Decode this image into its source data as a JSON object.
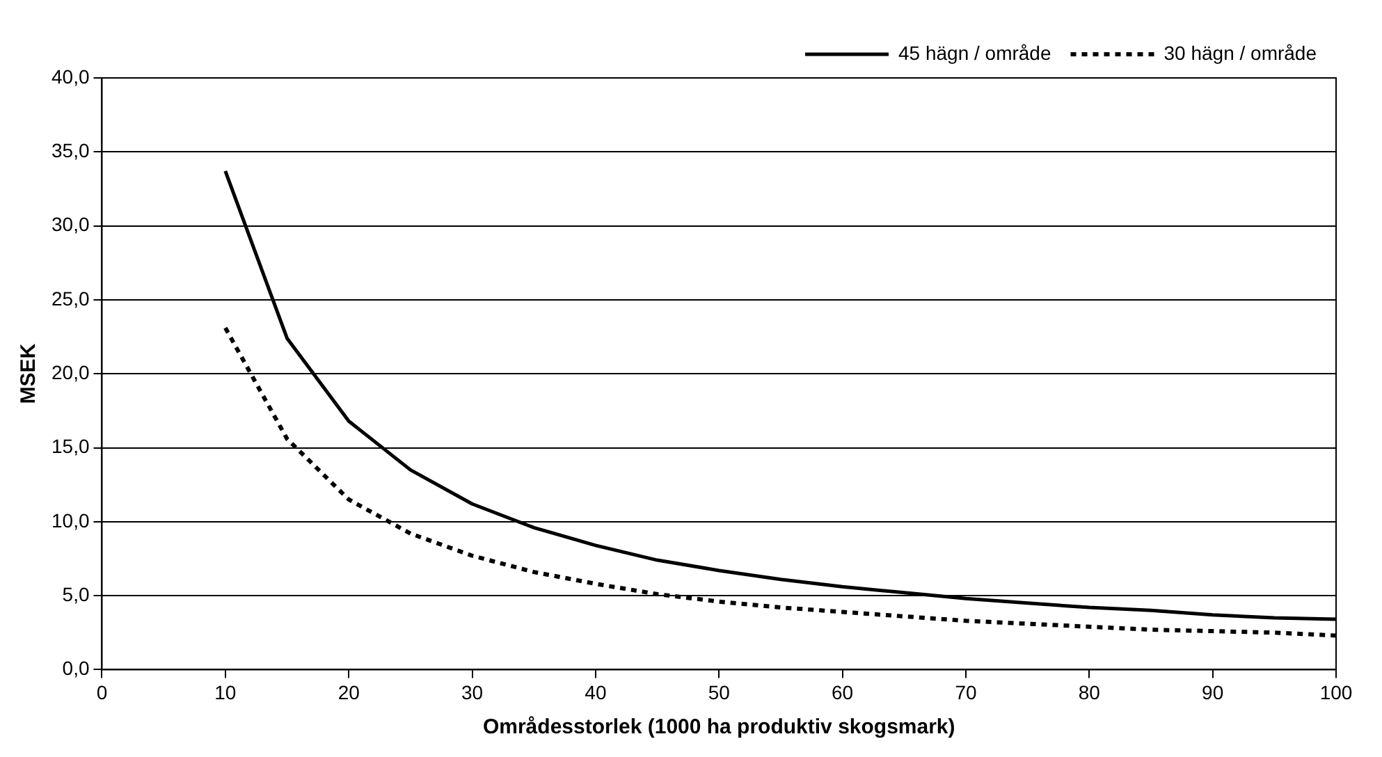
{
  "chart_data": {
    "type": "line",
    "xlabel": "Områdesstorlek (1000 ha produktiv skogsmark)",
    "ylabel": "MSEK",
    "x": [
      10,
      15,
      20,
      25,
      30,
      35,
      40,
      45,
      50,
      55,
      60,
      65,
      70,
      75,
      80,
      85,
      90,
      95,
      100
    ],
    "series": [
      {
        "name": "45 hägn / område",
        "color": "#000000",
        "line_style": "solid",
        "values": [
          33.7,
          22.4,
          16.8,
          13.5,
          11.2,
          9.6,
          8.4,
          7.4,
          6.7,
          6.1,
          5.6,
          5.2,
          4.8,
          4.5,
          4.2,
          4.0,
          3.7,
          3.5,
          3.4
        ]
      },
      {
        "name": "30 hägn / område",
        "color": "#000000",
        "line_style": "dotted",
        "values": [
          23.1,
          15.6,
          11.5,
          9.2,
          7.7,
          6.6,
          5.8,
          5.1,
          4.6,
          4.2,
          3.9,
          3.6,
          3.3,
          3.1,
          2.9,
          2.7,
          2.6,
          2.5,
          2.3
        ]
      }
    ],
    "xlim": [
      0,
      100
    ],
    "xticks": [
      0,
      10,
      20,
      30,
      40,
      50,
      60,
      70,
      80,
      90,
      100
    ],
    "ylim": [
      0,
      40
    ],
    "yticks": [
      {
        "value": 0,
        "label": "0,0"
      },
      {
        "value": 5,
        "label": "5,0"
      },
      {
        "value": 10,
        "label": "10,0"
      },
      {
        "value": 15,
        "label": "15,0"
      },
      {
        "value": 20,
        "label": "20,0"
      },
      {
        "value": 25,
        "label": "25,0"
      },
      {
        "value": 30,
        "label": "30,0"
      },
      {
        "value": 35,
        "label": "35,0"
      },
      {
        "value": 40,
        "label": "40,0"
      }
    ],
    "grid": "y",
    "legend": "top right",
    "marker": "none"
  }
}
